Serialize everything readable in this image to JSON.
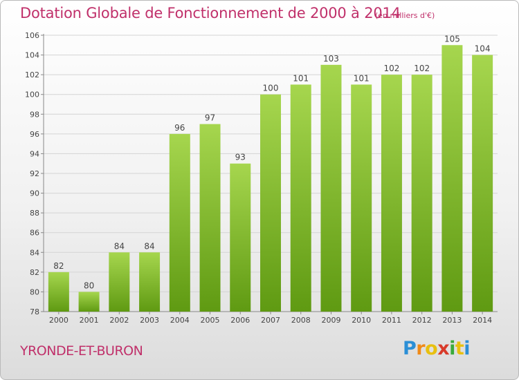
{
  "title": "Dotation Globale de Fonctionnement de 2000 à 2014",
  "subtitle": "(en milliers d'€)",
  "town": "YRONDE-ET-BURON",
  "logo": {
    "letters": [
      "P",
      "r",
      "o",
      "x",
      "i",
      "t",
      "i"
    ],
    "colors": [
      "#2b8fd6",
      "#f08a18",
      "#e8c010",
      "#d83a2a",
      "#3aaa3a",
      "#e8c010",
      "#2b8fd6"
    ]
  },
  "colors": {
    "bar_light": "#a6d64e",
    "bar_dark": "#5f9a12",
    "title": "#c0306a"
  },
  "chart_data": {
    "type": "bar",
    "title": "Dotation Globale de Fonctionnement de 2000 à 2014",
    "subtitle": "(en milliers d'€)",
    "categories": [
      "2000",
      "2001",
      "2002",
      "2003",
      "2004",
      "2005",
      "2006",
      "2007",
      "2008",
      "2009",
      "2010",
      "2011",
      "2012",
      "2013",
      "2014"
    ],
    "values": [
      82,
      80,
      84,
      84,
      96,
      97,
      93,
      100,
      101,
      103,
      101,
      102,
      102,
      105,
      104
    ],
    "ylim": [
      78,
      106
    ],
    "yticks": [
      78,
      80,
      82,
      84,
      86,
      88,
      90,
      92,
      94,
      96,
      98,
      100,
      102,
      104,
      106
    ],
    "grid": true
  }
}
